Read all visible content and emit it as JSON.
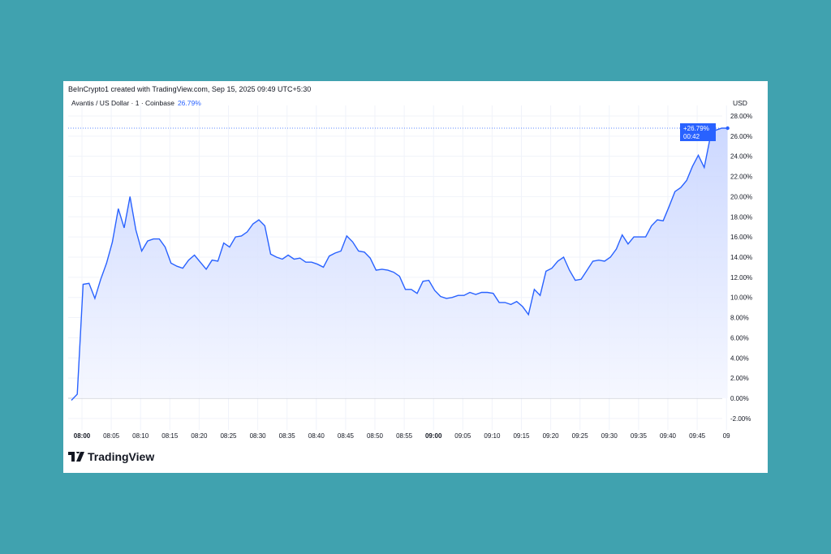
{
  "header": {
    "credit": "BeInCrypto1 created with TradingView.com, Sep 15, 2025 09:49 UTC+5:30",
    "symbol": "Avantis / US Dollar · 1 · Coinbase",
    "change": "26.79%",
    "currency": "USD"
  },
  "logo": {
    "text": "TradingView"
  },
  "colors": {
    "background": "#40a2af",
    "line": "#2962ff",
    "fill": "#dbe4ff",
    "badge": "#2962ff"
  },
  "chart_data": {
    "type": "area",
    "ylabel_unit": "%",
    "ylim": [
      -2,
      28
    ],
    "y_ticks": [
      "28.00%",
      "26.00%",
      "24.00%",
      "22.00%",
      "20.00%",
      "18.00%",
      "16.00%",
      "14.00%",
      "12.00%",
      "10.00%",
      "8.00%",
      "6.00%",
      "4.00%",
      "2.00%",
      "0.00%",
      "-2.00%"
    ],
    "x_ticks": [
      {
        "label": "08:00",
        "bold": true
      },
      {
        "label": "08:05"
      },
      {
        "label": "08:10"
      },
      {
        "label": "08:15"
      },
      {
        "label": "08:20"
      },
      {
        "label": "08:25"
      },
      {
        "label": "08:30"
      },
      {
        "label": "08:35"
      },
      {
        "label": "08:40"
      },
      {
        "label": "08:45"
      },
      {
        "label": "08:50"
      },
      {
        "label": "08:55"
      },
      {
        "label": "09:00",
        "bold": true
      },
      {
        "label": "09:05"
      },
      {
        "label": "09:10"
      },
      {
        "label": "09:15"
      },
      {
        "label": "09:20"
      },
      {
        "label": "09:25"
      },
      {
        "label": "09:30"
      },
      {
        "label": "09:35"
      },
      {
        "label": "09:40"
      },
      {
        "label": "09:45"
      },
      {
        "label": "09"
      }
    ],
    "x_start": "07:58",
    "interval": "1 min",
    "values": [
      -0.2,
      0.4,
      11.3,
      11.4,
      9.9,
      11.8,
      13.4,
      15.5,
      18.8,
      16.9,
      20.0,
      16.7,
      14.6,
      15.6,
      15.8,
      15.8,
      15.0,
      13.4,
      13.1,
      12.9,
      13.7,
      14.2,
      13.5,
      12.8,
      13.7,
      13.6,
      15.4,
      15.0,
      16.0,
      16.1,
      16.5,
      17.3,
      17.7,
      17.1,
      14.3,
      14.0,
      13.8,
      14.2,
      13.8,
      13.9,
      13.5,
      13.5,
      13.3,
      13.0,
      14.1,
      14.4,
      14.6,
      16.1,
      15.5,
      14.6,
      14.5,
      13.9,
      12.7,
      12.8,
      12.7,
      12.5,
      12.1,
      10.8,
      10.8,
      10.4,
      11.6,
      11.7,
      10.7,
      10.1,
      9.9,
      10.0,
      10.2,
      10.2,
      10.5,
      10.3,
      10.5,
      10.5,
      10.4,
      9.5,
      9.5,
      9.3,
      9.6,
      9.1,
      8.3,
      10.8,
      10.2,
      12.6,
      12.9,
      13.6,
      14.0,
      12.7,
      11.7,
      11.8,
      12.7,
      13.6,
      13.7,
      13.6,
      14.0,
      14.8,
      16.2,
      15.3,
      16.0,
      16.0,
      16.0,
      17.1,
      17.7,
      17.6,
      19.0,
      20.5,
      20.9,
      21.6,
      23.0,
      24.1,
      22.9,
      25.8,
      26.6,
      26.79,
      26.79
    ],
    "last": {
      "label": "+26.79%",
      "countdown": "00:42",
      "value": 26.79
    },
    "baseline": 0,
    "grid": true
  }
}
